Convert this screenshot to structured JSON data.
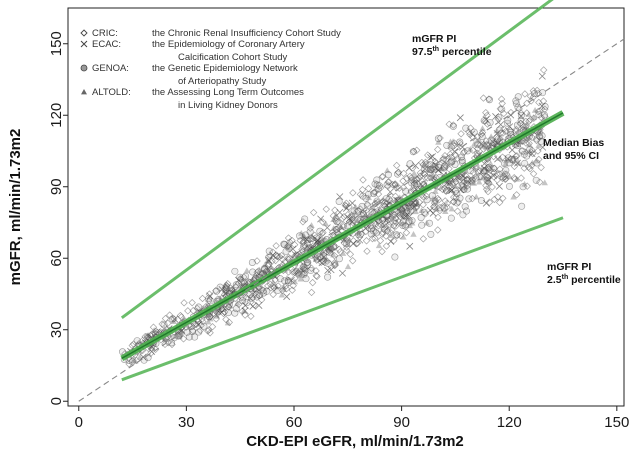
{
  "chart_data": {
    "type": "scatter",
    "xlabel": "CKD-EPI eGFR, ml/min/1.73m2",
    "ylabel": "mGFR, ml/min/1.73m2",
    "xlim": [
      -3,
      152
    ],
    "ylim": [
      -2,
      165
    ],
    "xticks": [
      0,
      30,
      60,
      90,
      120,
      150
    ],
    "yticks": [
      0,
      30,
      60,
      90,
      120,
      150
    ],
    "grid": false,
    "legend_position": "top-left",
    "legend": [
      {
        "symbol": "diamond-open",
        "abbr": "CRIC:",
        "text": "the Chronic Renal Insufficiency Cohort Study"
      },
      {
        "symbol": "cross",
        "abbr": "ECAC:",
        "text": "the Epidemiology of Coronary Artery",
        "text2": "Calcification Cohort Study"
      },
      {
        "symbol": "circle-hatched",
        "abbr": "GENOA:",
        "text": "the Genetic Epidemiology Network",
        "text2": "of Arteriopathy Study"
      },
      {
        "symbol": "triangle-filled",
        "abbr": "ALTOLD:",
        "text": "the Assessing Long Term Outcomes",
        "text2": "in Living Kidney Donors"
      }
    ],
    "lines": [
      {
        "name": "mGFR PI 97.5th percentile",
        "x": [
          12,
          135
        ],
        "y": [
          35,
          172
        ],
        "color": "#5cb85c"
      },
      {
        "name": "Median Bias and 95% CI",
        "x": [
          12,
          135
        ],
        "y": [
          18,
          121
        ],
        "color": "#4cae4c"
      },
      {
        "name": "mGFR PI 2.5th percentile",
        "x": [
          12,
          135
        ],
        "y": [
          9,
          77
        ],
        "color": "#5cb85c"
      },
      {
        "name": "identity",
        "x": [
          0,
          152
        ],
        "y": [
          0,
          152
        ],
        "color": "#888888",
        "dashed": true
      }
    ],
    "annotations": [
      {
        "line1": "mGFR PI",
        "line2_main": "97.5",
        "line2_sup": "th",
        "line2_rest": " percentile",
        "x": 117,
        "y": 159
      },
      {
        "line1": "Median Bias",
        "line2_main": "and 95% CI",
        "line2_sup": "",
        "line2_rest": "",
        "x": 132,
        "y": 110
      },
      {
        "line1": "mGFR PI",
        "line2_main": "2.5",
        "line2_sup": "th",
        "line2_rest": " percentile",
        "x": 129,
        "y": 72
      }
    ],
    "colors": {
      "points": "#555555",
      "band": "#6abf69",
      "bias_core": "#1f7a2a"
    }
  }
}
